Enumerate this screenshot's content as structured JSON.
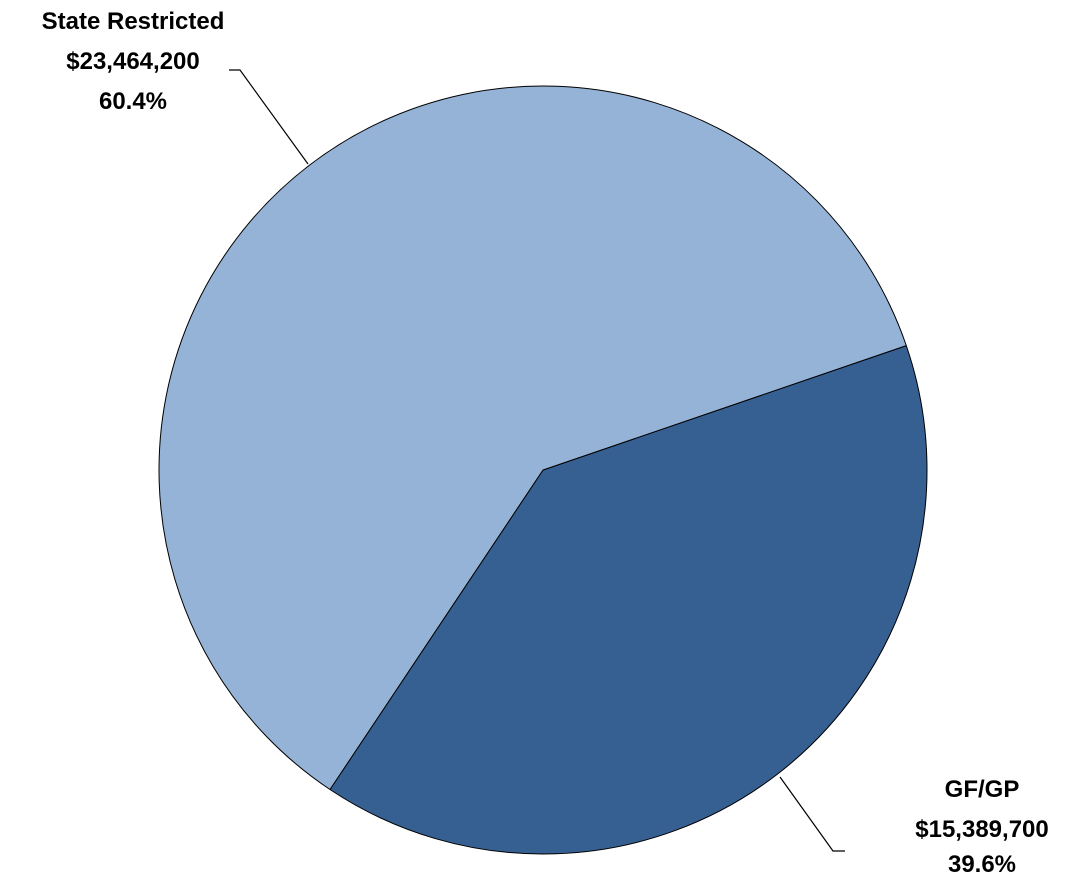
{
  "chart_data": {
    "type": "pie",
    "slices": [
      {
        "name": "GF/GP",
        "value": 15389700,
        "value_label": "$15,389,700",
        "percent": 39.6,
        "percent_label": "39.6%",
        "color": "#376092"
      },
      {
        "name": "State Restricted",
        "value": 23464200,
        "value_label": "$23,464,200",
        "percent": 60.4,
        "percent_label": "60.4%",
        "color": "#95B3D7"
      }
    ],
    "edge_color": "#000000",
    "legend": "none"
  }
}
